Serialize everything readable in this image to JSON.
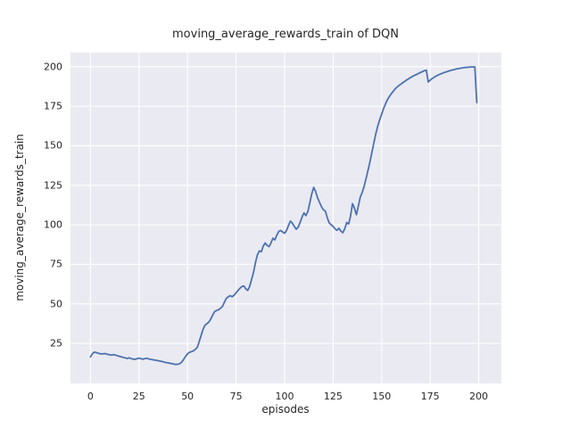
{
  "chart_data": {
    "type": "line",
    "title": "moving_average_rewards_train of DQN",
    "xlabel": "episodes",
    "ylabel": "moving_average_rewards_train",
    "xlim": [
      -10.3,
      211.7
    ],
    "ylim": [
      -0.3,
      208.9
    ],
    "xticks": [
      0,
      25,
      50,
      75,
      100,
      125,
      150,
      175,
      200
    ],
    "yticks": [
      25,
      50,
      75,
      100,
      125,
      150,
      175,
      200
    ],
    "grid": true,
    "legend": null,
    "style": "seaborn-darkgrid",
    "colors": {
      "line": "#4c72b0",
      "plot_bg": "#eaeaf2",
      "grid": "#ffffff",
      "text": "#262626",
      "figure_bg": "#ffffff"
    },
    "series": [
      {
        "name": "moving_average_rewards_train",
        "points": [
          [
            0,
            16.5
          ],
          [
            1,
            18.5
          ],
          [
            2,
            19.5
          ],
          [
            3,
            19.2
          ],
          [
            4,
            18.8
          ],
          [
            5,
            18.5
          ],
          [
            6,
            18.3
          ],
          [
            7,
            18.6
          ],
          [
            8,
            18.4
          ],
          [
            9,
            18.0
          ],
          [
            10,
            17.8
          ],
          [
            11,
            17.6
          ],
          [
            12,
            17.9
          ],
          [
            13,
            17.5
          ],
          [
            14,
            17.2
          ],
          [
            15,
            16.8
          ],
          [
            16,
            16.5
          ],
          [
            17,
            16.0
          ],
          [
            18,
            15.8
          ],
          [
            19,
            15.5
          ],
          [
            20,
            15.9
          ],
          [
            21,
            15.4
          ],
          [
            22,
            15.1
          ],
          [
            23,
            14.9
          ],
          [
            24,
            15.3
          ],
          [
            25,
            15.7
          ],
          [
            26,
            15.3
          ],
          [
            27,
            15.0
          ],
          [
            28,
            15.4
          ],
          [
            29,
            15.6
          ],
          [
            30,
            15.2
          ],
          [
            31,
            14.9
          ],
          [
            32,
            14.7
          ],
          [
            33,
            14.5
          ],
          [
            34,
            14.3
          ],
          [
            35,
            14.0
          ],
          [
            36,
            13.8
          ],
          [
            37,
            13.5
          ],
          [
            38,
            13.2
          ],
          [
            39,
            12.9
          ],
          [
            40,
            12.7
          ],
          [
            41,
            12.4
          ],
          [
            42,
            12.2
          ],
          [
            43,
            11.9
          ],
          [
            44,
            11.7
          ],
          [
            45,
            11.8
          ],
          [
            46,
            12.2
          ],
          [
            47,
            13.2
          ],
          [
            48,
            14.8
          ],
          [
            49,
            16.8
          ],
          [
            50,
            18.4
          ],
          [
            51,
            19.4
          ],
          [
            52,
            19.8
          ],
          [
            53,
            20.3
          ],
          [
            54,
            21.2
          ],
          [
            55,
            22.5
          ],
          [
            56,
            26.0
          ],
          [
            57,
            30.0
          ],
          [
            58,
            34.0
          ],
          [
            59,
            36.5
          ],
          [
            60,
            37.5
          ],
          [
            61,
            38.5
          ],
          [
            62,
            40.5
          ],
          [
            63,
            43.0
          ],
          [
            64,
            45.2
          ],
          [
            65,
            45.8
          ],
          [
            66,
            46.3
          ],
          [
            67,
            47.2
          ],
          [
            68,
            48.5
          ],
          [
            69,
            51.0
          ],
          [
            70,
            53.5
          ],
          [
            71,
            54.5
          ],
          [
            72,
            55.2
          ],
          [
            73,
            54.5
          ],
          [
            74,
            55.5
          ],
          [
            75,
            57.0
          ],
          [
            76,
            58.5
          ],
          [
            77,
            59.8
          ],
          [
            78,
            61.0
          ],
          [
            79,
            61.3
          ],
          [
            80,
            59.5
          ],
          [
            81,
            58.5
          ],
          [
            82,
            61.0
          ],
          [
            83,
            65.5
          ],
          [
            84,
            70.0
          ],
          [
            85,
            76.0
          ],
          [
            86,
            81.0
          ],
          [
            87,
            83.5
          ],
          [
            88,
            83.0
          ],
          [
            89,
            86.5
          ],
          [
            90,
            88.5
          ],
          [
            91,
            87.0
          ],
          [
            92,
            86.2
          ],
          [
            93,
            88.5
          ],
          [
            94,
            91.5
          ],
          [
            95,
            90.5
          ],
          [
            96,
            93.5
          ],
          [
            97,
            95.8
          ],
          [
            98,
            96.4
          ],
          [
            99,
            95.5
          ],
          [
            100,
            94.6
          ],
          [
            101,
            96.5
          ],
          [
            102,
            99.5
          ],
          [
            103,
            102.3
          ],
          [
            104,
            101.0
          ],
          [
            105,
            99.0
          ],
          [
            106,
            97.2
          ],
          [
            107,
            98.5
          ],
          [
            108,
            101.5
          ],
          [
            109,
            105.0
          ],
          [
            110,
            107.5
          ],
          [
            111,
            105.8
          ],
          [
            112,
            108.5
          ],
          [
            113,
            114.0
          ],
          [
            114,
            119.5
          ],
          [
            115,
            123.7
          ],
          [
            116,
            121.0
          ],
          [
            117,
            117.0
          ],
          [
            118,
            114.3
          ],
          [
            119,
            111.5
          ],
          [
            120,
            109.5
          ],
          [
            121,
            108.7
          ],
          [
            122,
            104.5
          ],
          [
            123,
            101.2
          ],
          [
            124,
            100.0
          ],
          [
            125,
            98.9
          ],
          [
            126,
            97.5
          ],
          [
            127,
            96.5
          ],
          [
            128,
            97.8
          ],
          [
            129,
            96.0
          ],
          [
            130,
            95.0
          ],
          [
            131,
            97.4
          ],
          [
            132,
            101.5
          ],
          [
            133,
            100.5
          ],
          [
            134,
            105.5
          ],
          [
            135,
            113.4
          ],
          [
            136,
            110.5
          ],
          [
            137,
            106.4
          ],
          [
            138,
            112.0
          ],
          [
            139,
            117.5
          ],
          [
            140,
            120.5
          ],
          [
            141,
            124.5
          ],
          [
            142,
            129.5
          ],
          [
            143,
            134.5
          ],
          [
            144,
            140.0
          ],
          [
            145,
            146.0
          ],
          [
            146,
            152.0
          ],
          [
            147,
            157.5
          ],
          [
            148,
            162.5
          ],
          [
            149,
            166.5
          ],
          [
            150,
            170.0
          ],
          [
            151,
            173.5
          ],
          [
            152,
            176.5
          ],
          [
            153,
            179.2
          ],
          [
            154,
            181.2
          ],
          [
            155,
            182.9
          ],
          [
            156,
            184.5
          ],
          [
            157,
            186.0
          ],
          [
            158,
            187.2
          ],
          [
            159,
            188.2
          ],
          [
            160,
            189.0
          ],
          [
            161,
            190.0
          ],
          [
            162,
            190.8
          ],
          [
            163,
            191.7
          ],
          [
            164,
            192.4
          ],
          [
            165,
            193.2
          ],
          [
            166,
            193.9
          ],
          [
            167,
            194.5
          ],
          [
            168,
            195.1
          ],
          [
            169,
            195.7
          ],
          [
            170,
            196.3
          ],
          [
            171,
            196.9
          ],
          [
            172,
            197.5
          ],
          [
            173,
            197.8
          ],
          [
            174,
            190.3
          ],
          [
            175,
            191.5
          ],
          [
            176,
            192.5
          ],
          [
            177,
            193.3
          ],
          [
            178,
            194.0
          ],
          [
            179,
            194.7
          ],
          [
            180,
            195.2
          ],
          [
            181,
            195.7
          ],
          [
            182,
            196.2
          ],
          [
            183,
            196.6
          ],
          [
            184,
            197.0
          ],
          [
            185,
            197.4
          ],
          [
            186,
            197.8
          ],
          [
            187,
            198.1
          ],
          [
            188,
            198.4
          ],
          [
            189,
            198.7
          ],
          [
            190,
            198.9
          ],
          [
            191,
            199.1
          ],
          [
            192,
            199.3
          ],
          [
            193,
            199.5
          ],
          [
            194,
            199.6
          ],
          [
            195,
            199.7
          ],
          [
            196,
            199.8
          ],
          [
            197,
            199.8
          ],
          [
            198,
            199.9
          ],
          [
            199,
            177.3
          ]
        ]
      }
    ]
  }
}
